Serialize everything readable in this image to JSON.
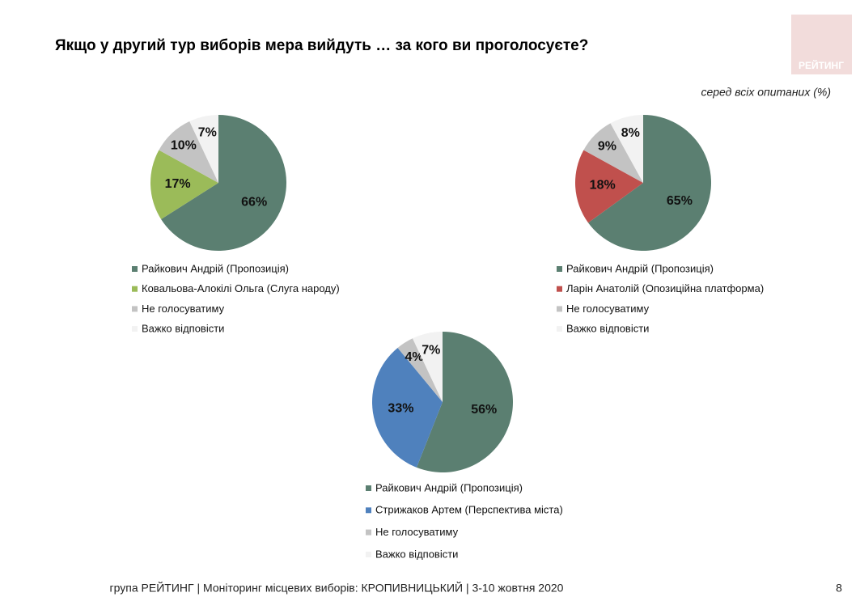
{
  "title": "Якщо у другий тур виборів мера вийдуть … за кого ви проголосуєте?",
  "subtitle": "серед всіх опитаних (%)",
  "logo": "РЕЙТИНГ",
  "footer": "група РЕЙТИНГ  | Моніторинг місцевих виборів: КРОПИВНИЦЬКИЙ | 3-10 жовтня 2020",
  "page_number": "8",
  "chart_data": [
    {
      "type": "pie",
      "categories": [
        "Райкович Андрій (Пропозиція)",
        "Ковальова-Алокілі Ольга (Слуга народу)",
        "Не голосуватиму",
        "Важко відповісти"
      ],
      "values": [
        66,
        17,
        10,
        7
      ],
      "value_labels": [
        "66%",
        "17%",
        "10%",
        "7%"
      ],
      "colors": [
        "#5b7f71",
        "#9bbb59",
        "#c3c3c3",
        "#f2f2f2"
      ]
    },
    {
      "type": "pie",
      "categories": [
        "Райкович Андрій (Пропозиція)",
        "Ларін Анатолій (Опозиційна платформа)",
        "Не голосуватиму",
        "Важко відповісти"
      ],
      "values": [
        65,
        18,
        9,
        8
      ],
      "value_labels": [
        "65%",
        "18%",
        "9%",
        "8%"
      ],
      "colors": [
        "#5b7f71",
        "#c0504d",
        "#c3c3c3",
        "#f2f2f2"
      ]
    },
    {
      "type": "pie",
      "categories": [
        "Райкович Андрій (Пропозиція)",
        "Стрижаков Артем (Перспектива міста)",
        "Не голосуватиму",
        "Важко відповісти"
      ],
      "values": [
        56,
        33,
        4,
        7
      ],
      "value_labels": [
        "56%",
        "33%",
        "4%",
        "7%"
      ],
      "colors": [
        "#5b7f71",
        "#4f81bd",
        "#c3c3c3",
        "#f2f2f2"
      ]
    }
  ]
}
